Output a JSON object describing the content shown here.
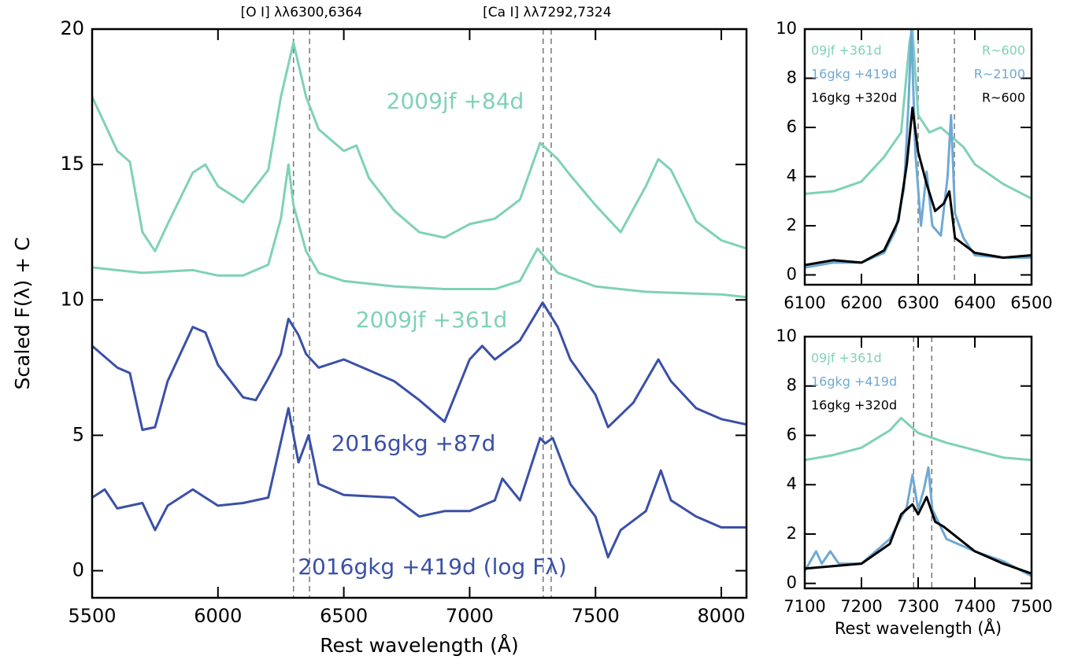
{
  "chart_data": [
    {
      "type": "line",
      "ylabel": "Scaled F(λ) + C",
      "xlabel": "Rest wavelength (Å)",
      "annotations": [
        "[O I] λλ6300,6364",
        "[Ca I] λλ7292,7324"
      ],
      "xlim": [
        5500,
        8100
      ],
      "ylim": [
        -1,
        20
      ],
      "xticks": [
        5500,
        6000,
        6500,
        7000,
        7500,
        8000
      ],
      "yticks": [
        0,
        5,
        10,
        15,
        20
      ],
      "vlines": [
        6300,
        6364,
        7292,
        7324
      ],
      "series": [
        {
          "name": "2009jf +84d",
          "color": "#7fd1b9",
          "x": [
            5500,
            5600,
            5650,
            5700,
            5750,
            5800,
            5900,
            5950,
            6000,
            6100,
            6200,
            6250,
            6300,
            6350,
            6400,
            6500,
            6550,
            6600,
            6700,
            6800,
            6900,
            7000,
            7100,
            7200,
            7280,
            7350,
            7400,
            7500,
            7600,
            7700,
            7750,
            7800,
            7900,
            8000,
            8100
          ],
          "values": [
            17.5,
            15.5,
            15.1,
            12.5,
            11.8,
            12.8,
            14.7,
            15.0,
            14.2,
            13.6,
            14.8,
            17.5,
            19.5,
            17.5,
            16.3,
            15.5,
            15.7,
            14.5,
            13.3,
            12.5,
            12.3,
            12.8,
            13.0,
            13.7,
            15.8,
            15.2,
            14.6,
            13.5,
            12.5,
            14.2,
            15.2,
            14.8,
            12.9,
            12.2,
            11.9
          ]
        },
        {
          "name": "2009jf +361d",
          "color": "#7fd1b9",
          "x": [
            5500,
            5700,
            5900,
            6000,
            6100,
            6200,
            6250,
            6280,
            6300,
            6350,
            6400,
            6500,
            6700,
            6900,
            7100,
            7200,
            7270,
            7350,
            7500,
            7700,
            8000,
            8100
          ],
          "values": [
            11.2,
            11.0,
            11.1,
            10.9,
            10.9,
            11.3,
            13.0,
            15.0,
            13.5,
            11.8,
            11.0,
            10.7,
            10.5,
            10.4,
            10.4,
            10.7,
            11.9,
            11.0,
            10.5,
            10.3,
            10.2,
            10.1
          ]
        },
        {
          "name": "2016gkg +87d",
          "color": "#3a50a8",
          "x": [
            5500,
            5600,
            5650,
            5700,
            5750,
            5800,
            5900,
            5950,
            6000,
            6100,
            6150,
            6200,
            6250,
            6280,
            6320,
            6350,
            6400,
            6500,
            6600,
            6700,
            6800,
            6900,
            7000,
            7050,
            7100,
            7200,
            7290,
            7350,
            7400,
            7500,
            7550,
            7650,
            7750,
            7800,
            7900,
            8000,
            8100
          ],
          "values": [
            8.3,
            7.5,
            7.3,
            5.2,
            5.3,
            7.0,
            9.0,
            8.8,
            7.6,
            6.4,
            6.3,
            7.1,
            8.0,
            9.3,
            8.7,
            8.0,
            7.5,
            7.8,
            7.4,
            7.0,
            6.3,
            5.5,
            7.8,
            8.3,
            7.8,
            8.5,
            9.9,
            9.0,
            7.8,
            6.5,
            5.3,
            6.2,
            7.8,
            7.0,
            6.0,
            5.6,
            5.4
          ]
        },
        {
          "name": "2016gkg +419d (log Fλ)",
          "color": "#3a50a8",
          "x": [
            5500,
            5550,
            5600,
            5700,
            5750,
            5800,
            5900,
            6000,
            6100,
            6200,
            6280,
            6320,
            6360,
            6400,
            6500,
            6700,
            6800,
            6900,
            7000,
            7100,
            7130,
            7200,
            7280,
            7300,
            7330,
            7400,
            7500,
            7550,
            7600,
            7700,
            7760,
            7800,
            7900,
            8000,
            8100
          ],
          "values": [
            2.7,
            3.0,
            2.3,
            2.5,
            1.5,
            2.4,
            3.0,
            2.4,
            2.5,
            2.7,
            6.0,
            4.0,
            5.0,
            3.2,
            2.8,
            2.7,
            2.0,
            2.2,
            2.2,
            2.6,
            3.4,
            2.6,
            4.9,
            4.7,
            4.9,
            3.2,
            2.0,
            0.5,
            1.5,
            2.2,
            3.7,
            2.6,
            2.0,
            1.6,
            1.6
          ]
        }
      ]
    },
    {
      "type": "line",
      "xlim": [
        6100,
        6500
      ],
      "ylim": [
        -0.4,
        10
      ],
      "xticks": [
        6100,
        6200,
        6300,
        6400,
        6500
      ],
      "yticks": [
        0,
        2,
        4,
        6,
        8,
        10
      ],
      "vlines": [
        6300,
        6364
      ],
      "series": [
        {
          "name": "09jf +361d",
          "resolution": "R~600",
          "color": "#7fd1b9",
          "x": [
            6100,
            6150,
            6200,
            6240,
            6270,
            6285,
            6290,
            6300,
            6320,
            6340,
            6360,
            6380,
            6400,
            6450,
            6500
          ],
          "values": [
            3.3,
            3.4,
            3.8,
            4.8,
            5.8,
            9.5,
            10,
            6.5,
            5.8,
            6.0,
            5.6,
            5.2,
            4.5,
            3.7,
            3.1
          ]
        },
        {
          "name": "16gkg +419d",
          "resolution": "R~2100",
          "color": "#6fa9d4",
          "x": [
            6100,
            6150,
            6200,
            6240,
            6260,
            6275,
            6283,
            6288,
            6295,
            6305,
            6315,
            6325,
            6340,
            6352,
            6358,
            6365,
            6380,
            6400,
            6450,
            6500
          ],
          "values": [
            0.3,
            0.5,
            0.5,
            0.9,
            1.8,
            3.5,
            7,
            10,
            5,
            2.0,
            4.2,
            2.0,
            1.6,
            4.0,
            6.5,
            2.5,
            1.5,
            0.8,
            0.7,
            0.7
          ]
        },
        {
          "name": "16gkg +320d",
          "resolution": "R~600",
          "color": "#000000",
          "x": [
            6100,
            6150,
            6200,
            6240,
            6265,
            6280,
            6290,
            6300,
            6315,
            6330,
            6345,
            6355,
            6365,
            6400,
            6450,
            6500
          ],
          "values": [
            0.4,
            0.6,
            0.5,
            1.0,
            2.2,
            4.5,
            6.8,
            5.0,
            3.7,
            2.6,
            2.9,
            3.4,
            1.5,
            0.9,
            0.7,
            0.8
          ]
        }
      ]
    },
    {
      "type": "line",
      "xlabel": "Rest wavelength (Å)",
      "xlim": [
        7100,
        7500
      ],
      "ylim": [
        -0.2,
        10
      ],
      "xticks": [
        7100,
        7200,
        7300,
        7400,
        7500
      ],
      "yticks": [
        0,
        2,
        4,
        6,
        8,
        10
      ],
      "vlines": [
        7292,
        7324
      ],
      "series": [
        {
          "name": "09jf +361d",
          "color": "#7fd1b9",
          "x": [
            7100,
            7150,
            7200,
            7250,
            7270,
            7300,
            7350,
            7400,
            7450,
            7500
          ],
          "values": [
            5.0,
            5.2,
            5.5,
            6.2,
            6.7,
            6.1,
            5.7,
            5.4,
            5.1,
            5.0
          ]
        },
        {
          "name": "16gkg +419d",
          "color": "#6fa9d4",
          "x": [
            7100,
            7120,
            7130,
            7145,
            7160,
            7200,
            7250,
            7280,
            7290,
            7300,
            7310,
            7318,
            7325,
            7350,
            7400,
            7450,
            7500
          ],
          "values": [
            0.5,
            1.3,
            0.8,
            1.3,
            0.8,
            0.8,
            1.8,
            3.1,
            4.4,
            3.0,
            3.8,
            4.7,
            3.0,
            1.8,
            1.3,
            0.9,
            0.3
          ]
        },
        {
          "name": "16gkg +320d",
          "color": "#000000",
          "x": [
            7100,
            7150,
            7200,
            7250,
            7270,
            7290,
            7300,
            7315,
            7330,
            7345,
            7400,
            7450,
            7500
          ],
          "values": [
            0.6,
            0.7,
            0.8,
            1.6,
            2.8,
            3.2,
            2.8,
            3.5,
            2.5,
            2.3,
            1.3,
            0.8,
            0.4
          ]
        }
      ]
    }
  ]
}
